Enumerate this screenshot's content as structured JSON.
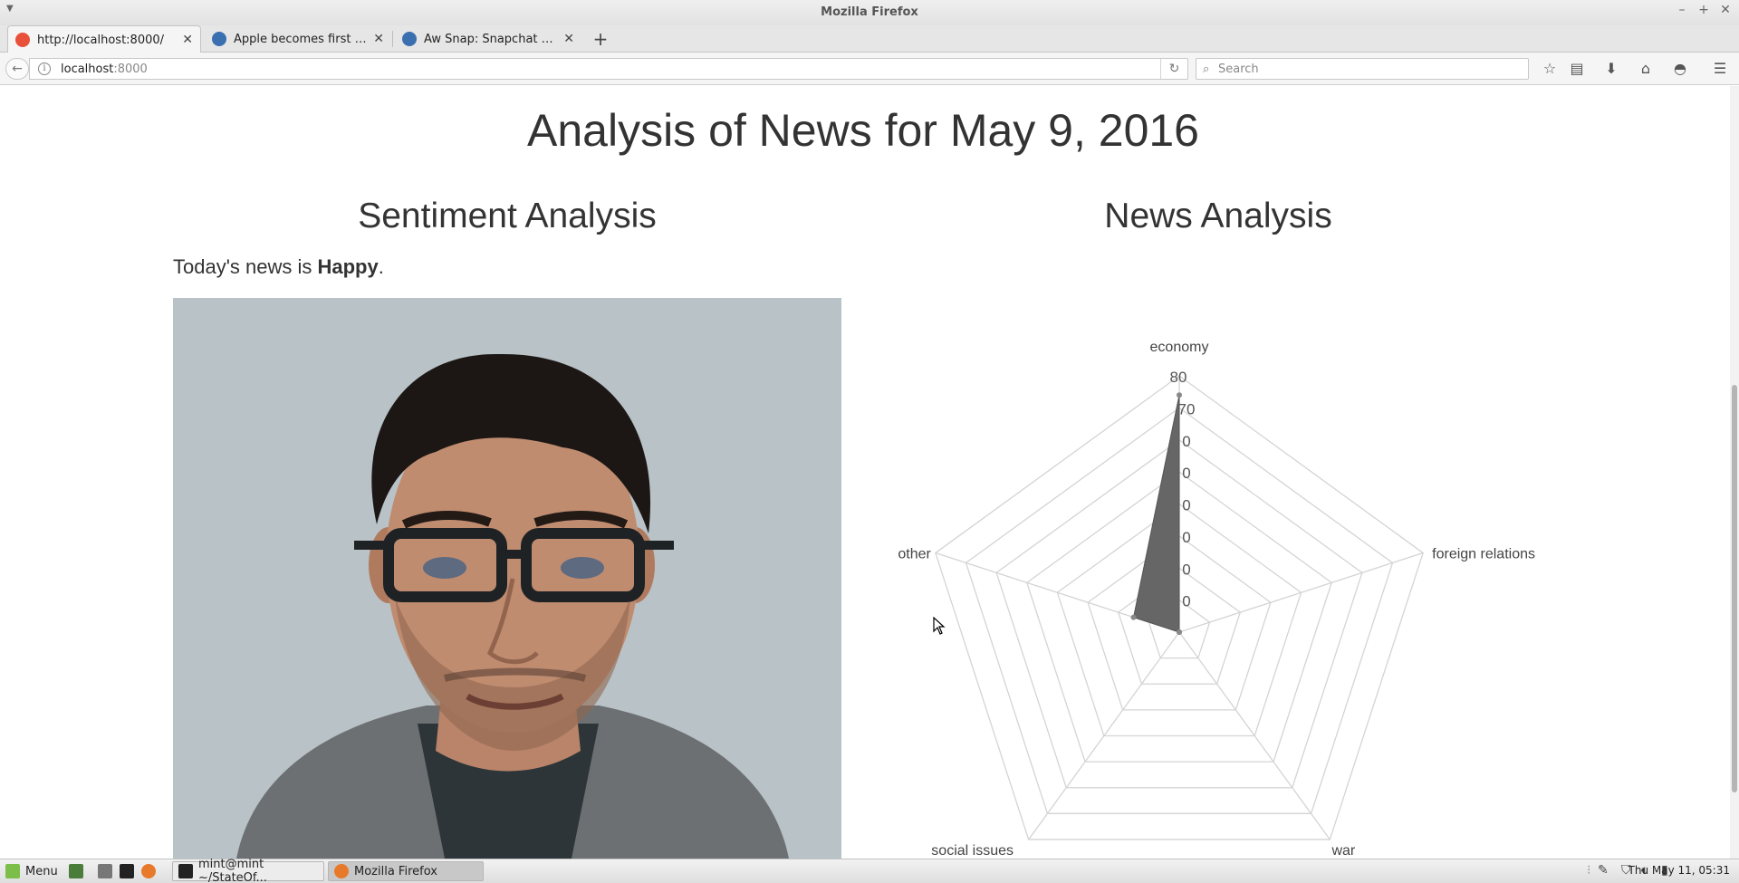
{
  "window": {
    "title": "Mozilla Firefox"
  },
  "tabs": [
    {
      "label": "http://localhost:8000/",
      "favicon_color": "#e8503a"
    },
    {
      "label": "Apple becomes first com...",
      "favicon_color": "#3a6fb0"
    },
    {
      "label": "Aw Snap: Snapchat paren...",
      "favicon_color": "#3a6fb0"
    }
  ],
  "new_tab": "+",
  "navbar": {
    "url_host": "localhost",
    "url_port": ":8000",
    "search_placeholder": "Search"
  },
  "page": {
    "title": "Analysis of News for May 9, 2016",
    "sentiment": {
      "heading": "Sentiment Analysis",
      "prefix": "Today's news is ",
      "mood": "Happy",
      "suffix": "."
    },
    "news": {
      "heading": "News Analysis"
    }
  },
  "chart_data": {
    "type": "radar",
    "axes": [
      "economy",
      "foreign relations",
      "war",
      "social issues",
      "other"
    ],
    "values": [
      74,
      0,
      0,
      0,
      15
    ],
    "ylim": [
      0,
      80
    ],
    "ticks": [
      10,
      20,
      30,
      40,
      50,
      60,
      70,
      80
    ],
    "visible_tick_labels": [
      "0",
      "0",
      "0",
      "0",
      "0",
      "0",
      "70",
      "80"
    ],
    "fill_color": "#666666",
    "grid_color": "#d4d4d4"
  },
  "taskbar": {
    "menu_label": "Menu",
    "tasks": [
      {
        "label": "mint@mint ~/StateOf...",
        "active": false
      },
      {
        "label": "Mozilla Firefox",
        "active": true
      }
    ],
    "clock": "Thu May 11, 05:31"
  }
}
